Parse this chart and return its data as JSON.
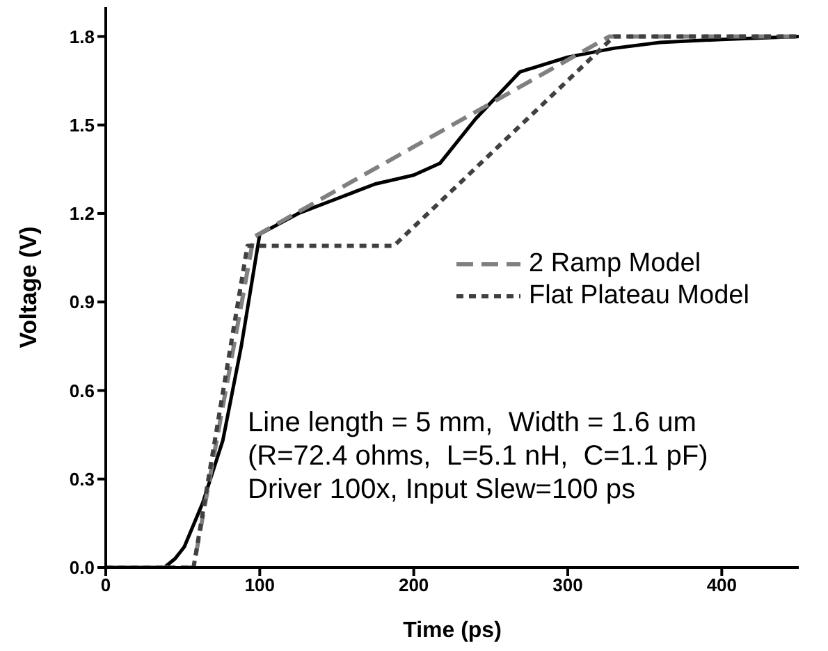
{
  "chart_data": {
    "type": "line",
    "xlabel": "Time (ps)",
    "ylabel": "Voltage (V)",
    "xlim": [
      0,
      450
    ],
    "xticks": [
      0,
      100,
      200,
      300,
      400
    ],
    "ylim": [
      0,
      1.9
    ],
    "yticks": [
      {
        "value": 0,
        "label": "0.0"
      },
      0.3,
      0.6,
      0.9,
      1.2,
      1.5,
      1.8
    ],
    "grid": false,
    "legend": "right",
    "marker": "none",
    "series": [
      {
        "color": "#000000",
        "line_style": "solid",
        "x": [
          0,
          38,
          45,
          51,
          63,
          76,
          88,
          100,
          125,
          150,
          175,
          200,
          217,
          240,
          269,
          300,
          330,
          360,
          400,
          450
        ],
        "values": [
          0,
          0,
          0.03,
          0.07,
          0.22,
          0.43,
          0.75,
          1.13,
          1.2,
          1.25,
          1.3,
          1.33,
          1.37,
          1.52,
          1.68,
          1.73,
          1.76,
          1.78,
          1.79,
          1.8
        ]
      },
      {
        "name": "2 Ramp Model",
        "color": "#808080",
        "line_style": "dashed",
        "x": [
          0,
          57,
          96,
          327,
          450
        ],
        "values": [
          0,
          0,
          1.12,
          1.8,
          1.8
        ]
      },
      {
        "name": "Flat Plateau Model",
        "color": "#404040",
        "line_style": "dotted",
        "x": [
          0,
          57,
          92,
          187,
          330,
          450
        ],
        "values": [
          0,
          0,
          1.09,
          1.09,
          1.8,
          1.8
        ]
      }
    ],
    "annotations": [
      "Line length = 5 mm,  Width = 1.6 um",
      "(R=72.4 ohms,  L=5.1 nH,  C=1.1 pF)",
      "Driver 100x, Input Slew=100 ps"
    ]
  }
}
